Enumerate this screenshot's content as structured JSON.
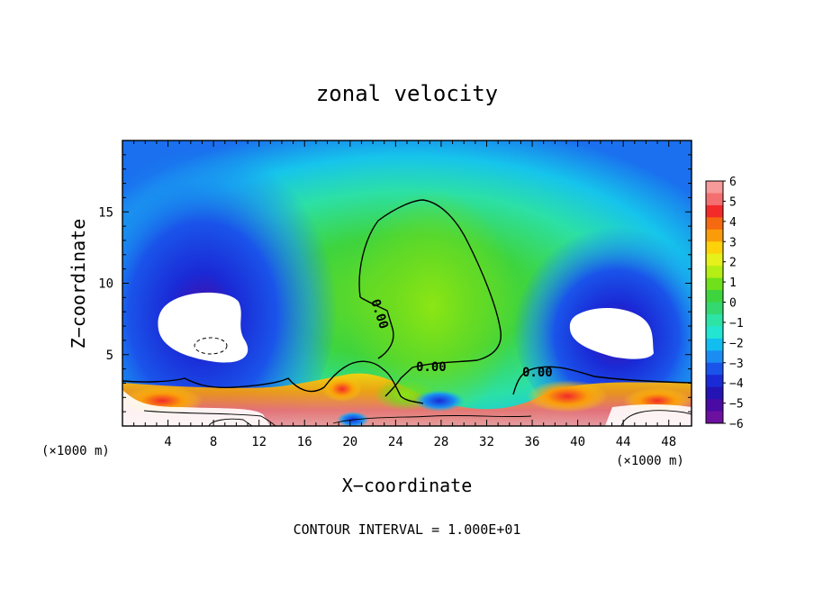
{
  "chart_data": {
    "type": "heatmap",
    "title": "zonal velocity",
    "xlabel": "X−coordinate",
    "ylabel": "Z−coordinate",
    "x_unit_left": "(×1000 m)",
    "x_unit_right": "(×1000 m)",
    "xlim": [
      0,
      50
    ],
    "ylim": [
      0,
      20
    ],
    "x_ticks": [
      4,
      8,
      12,
      16,
      20,
      24,
      28,
      32,
      36,
      40,
      44,
      48
    ],
    "x_tick_labels": [
      "4",
      "8",
      "12",
      "16",
      "20",
      "24",
      "28",
      "32",
      "36",
      "40",
      "44",
      "48"
    ],
    "y_ticks": [
      5,
      10,
      15
    ],
    "y_tick_labels": [
      "5",
      "10",
      "15"
    ],
    "colorbar": {
      "min": -6,
      "max": 6,
      "tick_labels": [
        "6",
        "5",
        "4",
        "3",
        "2",
        "1",
        "0",
        "−1",
        "−2",
        "−3",
        "−4",
        "−5",
        "−6"
      ],
      "colors": [
        "#f79a9a",
        "#f46f6f",
        "#f22a2a",
        "#f56a10",
        "#fa9c0a",
        "#fdd20a",
        "#e6f01a",
        "#b4ee14",
        "#6fe01a",
        "#3ed43e",
        "#34d870",
        "#2de4a6",
        "#22e6d2",
        "#12bef0",
        "#1a8cf2",
        "#1a54ea",
        "#1a2ad6",
        "#2414b4",
        "#4a0aa4",
        "#6c10a0"
      ]
    },
    "contour_labels": [
      "0.00",
      "0.00",
      "0.00"
    ],
    "footer": "CONTOUR INTERVAL = 1.000E+01"
  }
}
